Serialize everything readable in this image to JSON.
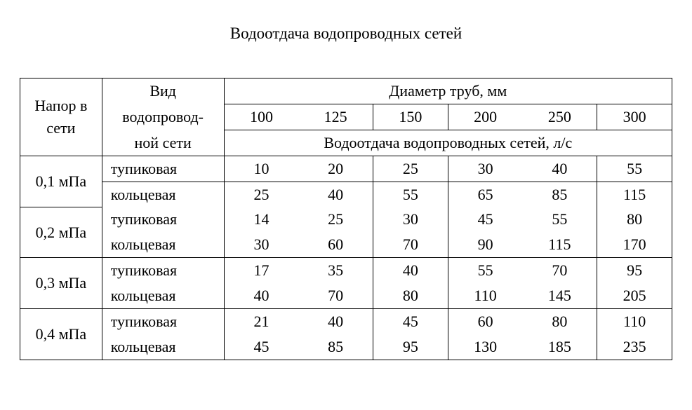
{
  "title": "Водоотдача водопроводных сетей",
  "headers": {
    "pressure": "Напор в сети",
    "type_line1": "Вид",
    "type_line2": "водопровод-",
    "type_line3": "ной сети",
    "diameter_title": "Диаметр труб, мм",
    "yield_title": "Водоотдача водопроводных сетей, л/с",
    "diameters": [
      "100",
      "125",
      "150",
      "200",
      "250",
      "300"
    ]
  },
  "groups": [
    {
      "pressure": "0,1 мПа",
      "rows": [
        {
          "type": "тупиковая",
          "values": [
            "10",
            "20",
            "25",
            "30",
            "40",
            "55"
          ]
        },
        {
          "type": "кольцевая",
          "values": [
            "25",
            "40",
            "55",
            "65",
            "85",
            "115"
          ]
        }
      ]
    },
    {
      "pressure": "0,2 мПа",
      "rows": [
        {
          "type": "тупиковая",
          "values": [
            "14",
            "25",
            "30",
            "45",
            "55",
            "80"
          ]
        },
        {
          "type": "кольцевая",
          "values": [
            "30",
            "60",
            "70",
            "90",
            "115",
            "170"
          ]
        }
      ]
    },
    {
      "pressure": "0,3 мПа",
      "rows": [
        {
          "type": "тупиковая",
          "values": [
            "17",
            "35",
            "40",
            "55",
            "70",
            "95"
          ]
        },
        {
          "type": "кольцевая",
          "values": [
            "40",
            "70",
            "80",
            "110",
            "145",
            "205"
          ]
        }
      ]
    },
    {
      "pressure": "0,4 мПа",
      "rows": [
        {
          "type": "тупиковая",
          "values": [
            "21",
            "40",
            "45",
            "60",
            "80",
            "110"
          ]
        },
        {
          "type": "кольцевая",
          "values": [
            "45",
            "85",
            "95",
            "130",
            "185",
            "235"
          ]
        }
      ]
    }
  ],
  "style": {
    "font_family": "Times New Roman",
    "title_fontsize": 23,
    "cell_fontsize": 22,
    "border_color": "#000000",
    "background": "#ffffff",
    "text_color": "#000000"
  }
}
